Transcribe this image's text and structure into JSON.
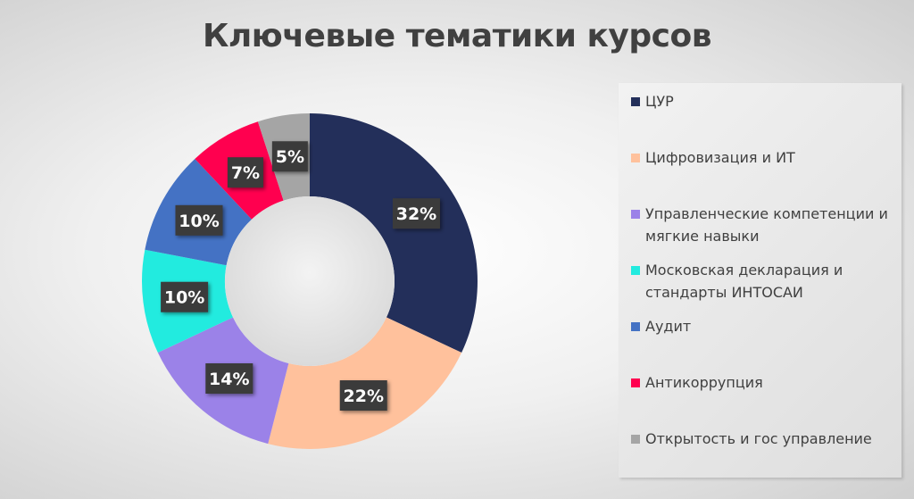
{
  "chart_data": {
    "type": "pie",
    "variant": "donut",
    "title": "Ключевые тематики курсов",
    "legend_position": "right",
    "categories": [
      "ЦУР",
      "Цифровизация и ИТ",
      "Управленческие компетенции и мягкие навыки",
      "Московская декларация и стандарты ИНТОСАИ",
      "Аудит",
      "Антикоррупция",
      "Открытость и гос управление"
    ],
    "values": [
      32,
      22,
      14,
      10,
      10,
      7,
      5
    ],
    "data_labels": [
      "32%",
      "22%",
      "14%",
      "10%",
      "10%",
      "7%",
      "5%"
    ],
    "colors": [
      "#232f5a",
      "#ffc19c",
      "#9b82e8",
      "#22ebdf",
      "#4472c4",
      "#ff004f",
      "#a5a5a5"
    ]
  }
}
